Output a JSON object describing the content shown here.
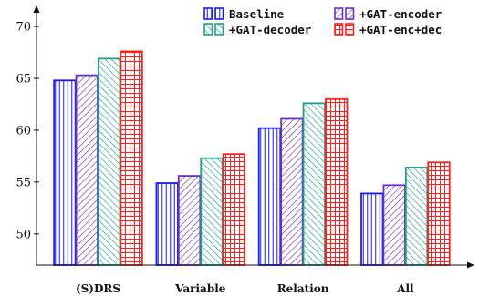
{
  "chart_data": {
    "type": "bar",
    "categories": [
      "(S)DRS",
      "Variable",
      "Relation",
      "All"
    ],
    "series": [
      {
        "name": "Baseline",
        "values": [
          64.8,
          54.9,
          60.2,
          53.9
        ],
        "color": "#1a1aff",
        "pattern": "vertical"
      },
      {
        "name": "+GAT-encoder",
        "values": [
          65.3,
          55.6,
          61.1,
          54.7
        ],
        "color": "#7030c0",
        "pattern": "diagonal-up"
      },
      {
        "name": "+GAT-decoder",
        "values": [
          66.9,
          57.3,
          62.6,
          56.4
        ],
        "color": "#1f9e89",
        "pattern": "diagonal-down"
      },
      {
        "name": "+GAT-enc+dec",
        "values": [
          67.6,
          57.7,
          63.0,
          56.9
        ],
        "color": "#ff2020",
        "pattern": "grid"
      }
    ],
    "yticks": [
      50,
      55,
      60,
      65,
      70
    ],
    "ylim": [
      47,
      71.5
    ],
    "title": "",
    "xlabel": "",
    "ylabel": "",
    "grid": false,
    "legend_position": "top"
  }
}
